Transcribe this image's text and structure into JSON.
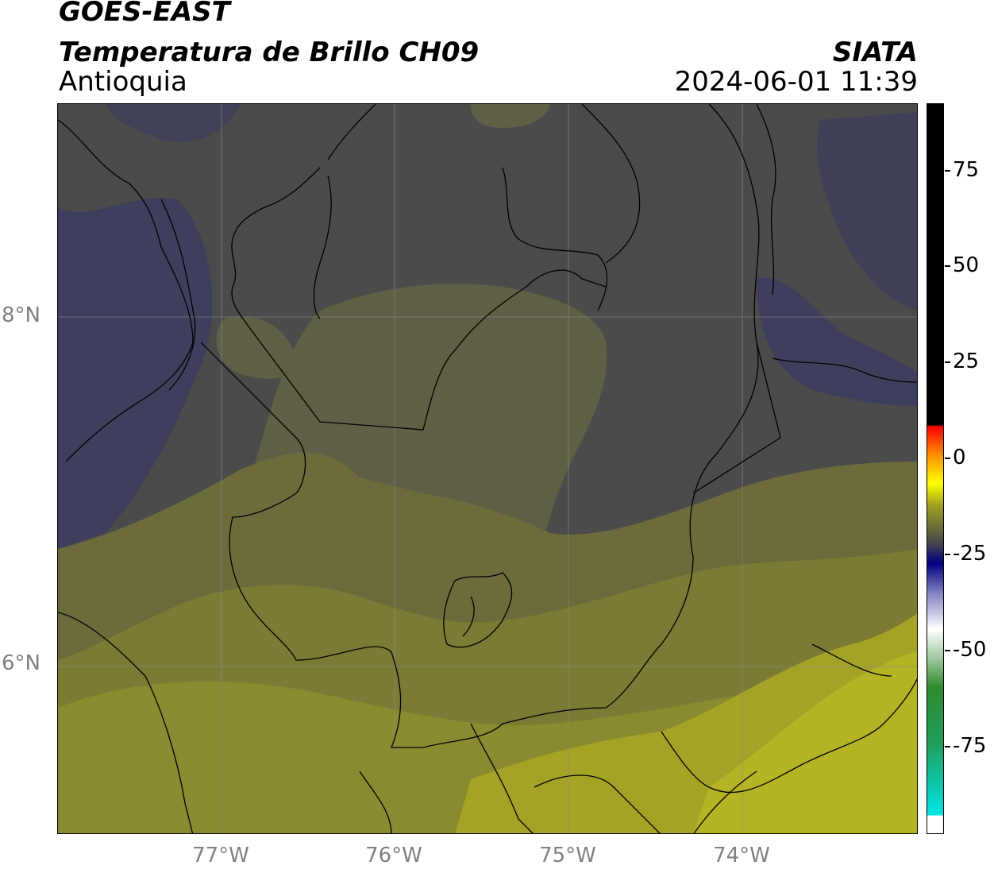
{
  "header": {
    "satellite": "GOES-EAST",
    "product": "Temperatura de Brillo CH09",
    "region": "Antioquia",
    "agency": "SIATA",
    "datetime": "2024-06-01 11:39"
  },
  "axes": {
    "lat_labels": [
      "8°N",
      "6°N"
    ],
    "lon_labels": [
      "77°W",
      "76°W",
      "75°W",
      "74°W"
    ]
  },
  "colorbar": {
    "tick_labels": [
      "75",
      "50",
      "25",
      "0",
      "-25",
      "-50",
      "-75"
    ],
    "colors": {
      "black": "#000000",
      "red": "#ff0000",
      "orange": "#ff8c00",
      "yellow": "#ffff00",
      "gray": "#4a4a4a",
      "navy": "#000080",
      "white": "#ffffff",
      "green": "#2e8b2e",
      "cyan": "#00e5e5"
    }
  },
  "map_colors": {
    "dark_gray": "#4b4b4b",
    "blue_gray": "#3e3f5c",
    "olive_dark": "#5f5f45",
    "olive": "#6b6b3c",
    "olive_light": "#8a8a30",
    "yellow_olive": "#a4a326",
    "bright_yellow": "#b3b324",
    "border": "#000000",
    "grid": "#8a8a8a"
  }
}
